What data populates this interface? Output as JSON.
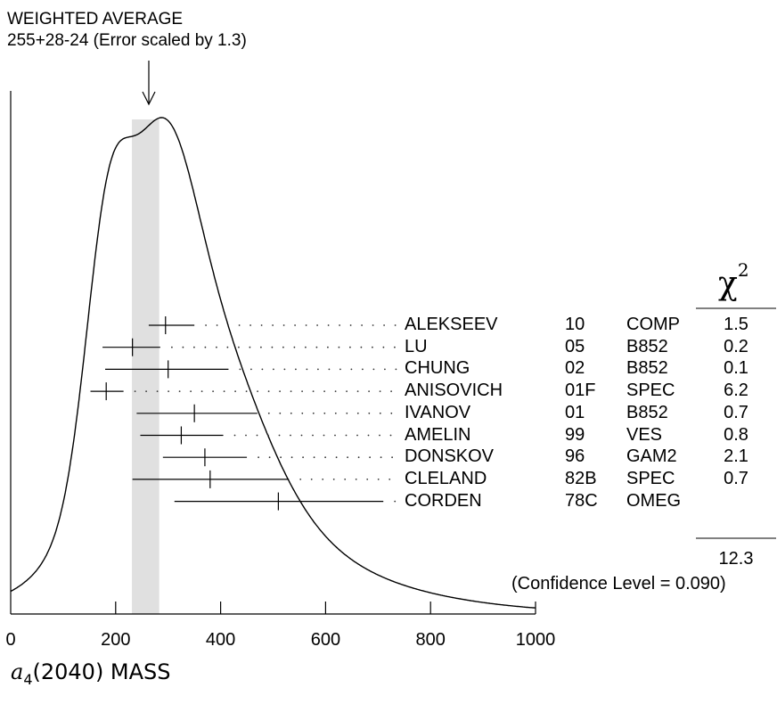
{
  "chart_data": {
    "type": "ideogram",
    "header_line1": "WEIGHTED AVERAGE",
    "header_line2": "255+28-24 (Error scaled by 1.3)",
    "weighted_average": {
      "value": 255,
      "err_plus": 28,
      "err_minus": 24
    },
    "chi2_symbol": "χ",
    "chi2_exp": "2",
    "x_ticks": [
      "0",
      "200",
      "400",
      "600",
      "800",
      "1000"
    ],
    "xlim": [
      0,
      1000
    ],
    "title_symbol": "a",
    "title_sub": "4",
    "title_rest": "(2040) MASS",
    "measurements": [
      {
        "author": "ALEKSEEV",
        "year": "10",
        "tech": "COMP",
        "chi2": "1.5",
        "value": 295,
        "lo": 263,
        "hi": 350
      },
      {
        "author": "LU",
        "year": "05",
        "tech": "B852",
        "chi2": "0.2",
        "value": 232,
        "lo": 175,
        "hi": 285
      },
      {
        "author": "CHUNG",
        "year": "02",
        "tech": "B852",
        "chi2": "0.1",
        "value": 300,
        "lo": 180,
        "hi": 415
      },
      {
        "author": "ANISOVICH",
        "year": "01F",
        "tech": "SPEC",
        "chi2": "6.2",
        "value": 182,
        "lo": 152,
        "hi": 215
      },
      {
        "author": "IVANOV",
        "year": "01",
        "tech": "B852",
        "chi2": "0.7",
        "value": 350,
        "lo": 240,
        "hi": 470
      },
      {
        "author": "AMELIN",
        "year": "99",
        "tech": "VES",
        "chi2": "0.8",
        "value": 325,
        "lo": 247,
        "hi": 405
      },
      {
        "author": "DONSKOV",
        "year": "96",
        "tech": "GAM2",
        "chi2": "2.1",
        "value": 370,
        "lo": 290,
        "hi": 450
      },
      {
        "author": "CLELAND",
        "year": "82B",
        "tech": "SPEC",
        "chi2": "0.7",
        "value": 380,
        "lo": 232,
        "hi": 530
      },
      {
        "author": "CORDEN",
        "year": "78C",
        "tech": "OMEG",
        "chi2": "",
        "value": 510,
        "lo": 312,
        "hi": 710
      }
    ],
    "chi2_total": "12.3",
    "confidence_level": "(Confidence Level = 0.090)"
  }
}
